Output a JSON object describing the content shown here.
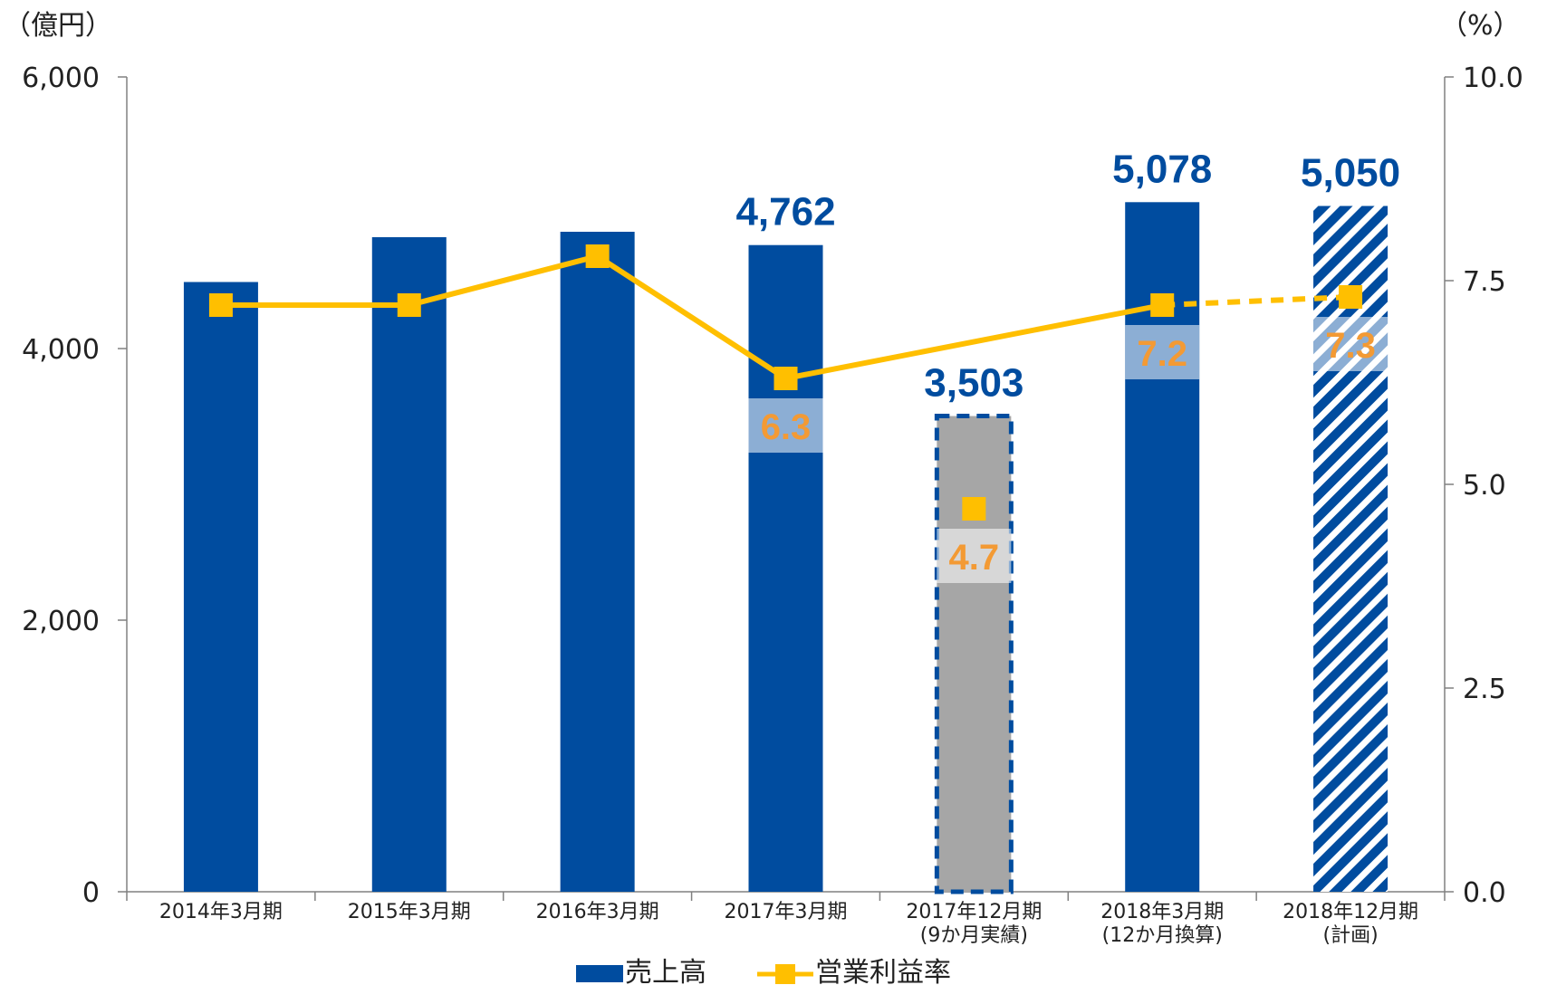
{
  "chart_data": {
    "type": "bar",
    "categories": [
      [
        "2014年3月期"
      ],
      [
        "2015年3月期"
      ],
      [
        "2016年3月期"
      ],
      [
        "2017年3月期"
      ],
      [
        "2017年12月期",
        "(9か月実績)"
      ],
      [
        "2018年3月期",
        "(12か月換算)"
      ],
      [
        "2018年12月期",
        "(計画)"
      ]
    ],
    "series": [
      {
        "name": "売上高",
        "axis": "left",
        "values": [
          4490,
          4820,
          4860,
          4762,
          3503,
          5078,
          5050
        ],
        "data_labels": [
          "",
          "",
          "",
          "4,762",
          "3,503",
          "5,078",
          "5,050"
        ],
        "styles": [
          "solid",
          "solid",
          "solid",
          "solid",
          "gray-dashed",
          "solid",
          "hatched"
        ]
      },
      {
        "name": "営業利益率",
        "axis": "right",
        "type": "line",
        "values": [
          7.2,
          7.2,
          7.8,
          6.3,
          4.7,
          7.2,
          7.3
        ],
        "data_labels": [
          "",
          "",
          "",
          "6.3",
          "4.7",
          "7.2",
          "7.3"
        ],
        "line_segments": [
          {
            "from": 0,
            "to": 3,
            "style": "solid"
          },
          {
            "from": 3,
            "to": 5,
            "style": "solid"
          },
          {
            "from": 5,
            "to": 6,
            "style": "dashed"
          }
        ],
        "isolated_points": [
          4
        ]
      }
    ],
    "left_axis": {
      "unit": "（億円）",
      "ylim": [
        0,
        6000
      ],
      "ticks": [
        0,
        2000,
        4000,
        6000
      ],
      "tick_labels": [
        "0",
        "2,000",
        "4,000",
        "6,000"
      ]
    },
    "right_axis": {
      "unit": "（%）",
      "ylim": [
        0,
        10
      ],
      "ticks": [
        0,
        2.5,
        5,
        7.5,
        10
      ],
      "tick_labels": [
        "0.0",
        "2.5",
        "5.0",
        "7.5",
        "10.0"
      ]
    },
    "legend_position": "bottom",
    "grid": false,
    "colors": {
      "bar": "#004C9F",
      "bar_gray": "#A6A6A6",
      "line": "#FFBF00",
      "value_label": "#004C9F",
      "rate_label": "#F39A34",
      "axis": "#808080"
    }
  }
}
